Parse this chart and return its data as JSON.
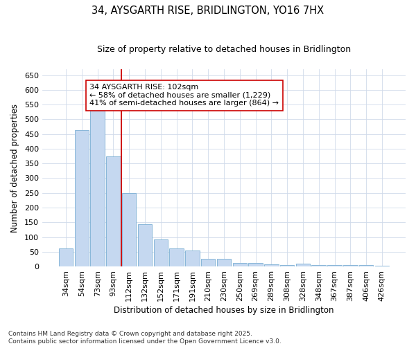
{
  "title": "34, AYSGARTH RISE, BRIDLINGTON, YO16 7HX",
  "subtitle": "Size of property relative to detached houses in Bridlington",
  "xlabel": "Distribution of detached houses by size in Bridlington",
  "ylabel": "Number of detached properties",
  "categories": [
    "34sqm",
    "54sqm",
    "73sqm",
    "93sqm",
    "112sqm",
    "132sqm",
    "152sqm",
    "171sqm",
    "191sqm",
    "210sqm",
    "230sqm",
    "250sqm",
    "269sqm",
    "289sqm",
    "308sqm",
    "328sqm",
    "348sqm",
    "367sqm",
    "387sqm",
    "406sqm",
    "426sqm"
  ],
  "values": [
    62,
    462,
    530,
    375,
    250,
    143,
    92,
    62,
    55,
    27,
    27,
    11,
    11,
    7,
    6,
    9,
    4,
    4,
    6,
    4,
    3
  ],
  "bar_color": "#c5d8f0",
  "bar_edge_color": "#7bafd4",
  "vline_x_index": 3,
  "vline_color": "#cc0000",
  "annotation_line1": "34 AYSGARTH RISE: 102sqm",
  "annotation_line2": "← 58% of detached houses are smaller (1,229)",
  "annotation_line3": "41% of semi-detached houses are larger (864) →",
  "annotation_box_color": "white",
  "annotation_box_edge": "#cc0000",
  "ylim": [
    0,
    670
  ],
  "yticks": [
    0,
    50,
    100,
    150,
    200,
    250,
    300,
    350,
    400,
    450,
    500,
    550,
    600,
    650
  ],
  "footer_line1": "Contains HM Land Registry data © Crown copyright and database right 2025.",
  "footer_line2": "Contains public sector information licensed under the Open Government Licence v3.0.",
  "bg_color": "#ffffff",
  "plot_bg_color": "#ffffff",
  "grid_color": "#d0daea",
  "title_fontsize": 10.5,
  "subtitle_fontsize": 9,
  "axis_label_fontsize": 8.5,
  "tick_fontsize": 8,
  "annotation_fontsize": 8,
  "footer_fontsize": 6.5
}
